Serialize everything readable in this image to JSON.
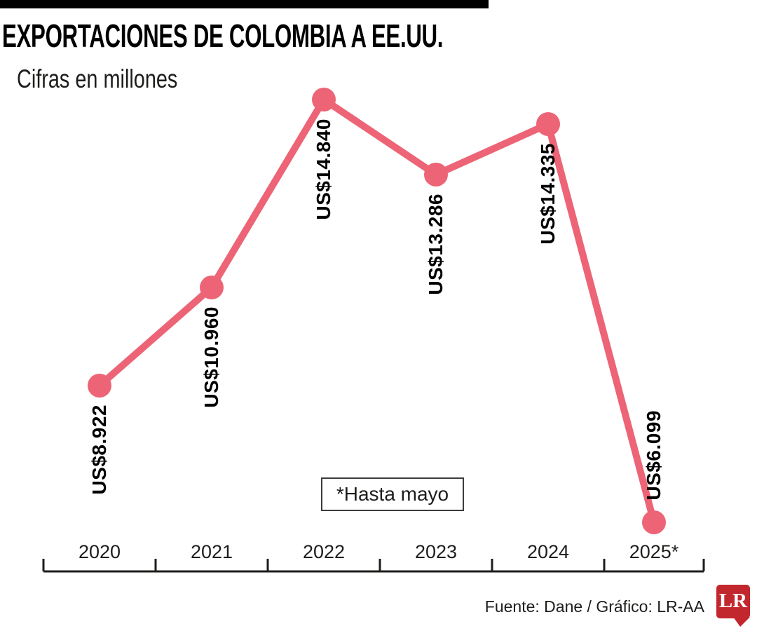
{
  "header": {
    "title": "EXPORTACIONES DE COLOMBIA A EE.UU.",
    "subtitle": "Cifras en millones"
  },
  "chart_data": {
    "type": "line",
    "title": "EXPORTACIONES DE COLOMBIA A EE.UU.",
    "subtitle": "Cifras en millones",
    "categories": [
      "2020",
      "2021",
      "2022",
      "2023",
      "2024",
      "2025*"
    ],
    "values": [
      8922,
      10960,
      14840,
      13286,
      14335,
      6099
    ],
    "point_labels": [
      "US$8.922",
      "US$10.960",
      "US$14.840",
      "US$13.286",
      "US$14.335",
      "US$6.099"
    ],
    "label_placement": [
      "below",
      "below",
      "below",
      "below",
      "below",
      "above"
    ],
    "note": "*Hasta mayo",
    "line_color": "#ec6476",
    "axis_color": "#1d1d1b",
    "grid": false,
    "legend": "none",
    "ylim": [
      5000,
      17000
    ]
  },
  "footer": {
    "credit": "Fuente: Dane / Gráfico: LR-AA",
    "logo": {
      "text": "LR",
      "color": "#c2272d"
    }
  }
}
